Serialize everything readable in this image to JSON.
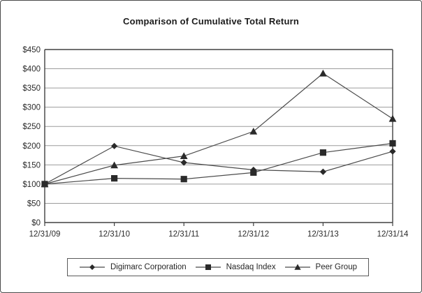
{
  "title": "Comparison of Cumulative Total Return",
  "chart_data": {
    "type": "line",
    "title": "Comparison of Cumulative Total Return",
    "categories": [
      "12/31/09",
      "12/31/10",
      "12/31/11",
      "12/31/12",
      "12/31/13",
      "12/31/14"
    ],
    "series": [
      {
        "name": "Digimarc Corporation",
        "marker": "diamond",
        "values": [
          100,
          199,
          156,
          137,
          132,
          185
        ]
      },
      {
        "name": "Nasdaq Index",
        "marker": "square",
        "values": [
          100,
          115,
          113,
          130,
          182,
          206
        ]
      },
      {
        "name": "Peer Group",
        "marker": "triangle",
        "values": [
          100,
          149,
          173,
          237,
          388,
          270
        ]
      }
    ],
    "xlabel": "",
    "ylabel": "",
    "ylim": [
      0,
      450
    ],
    "ytick_step": 50,
    "ytick_labels": [
      "$0",
      "$50",
      "$100",
      "$150",
      "$200",
      "$250",
      "$300",
      "$350",
      "$400",
      "$450"
    ],
    "grid": true,
    "legend_position": "bottom",
    "colors": {
      "line": "#4a4a4a",
      "marker": "#2a2a2a",
      "grid": "#9c9c9c",
      "frame": "#404040",
      "text": "#2b2b2b",
      "background": "#ffffff"
    }
  }
}
